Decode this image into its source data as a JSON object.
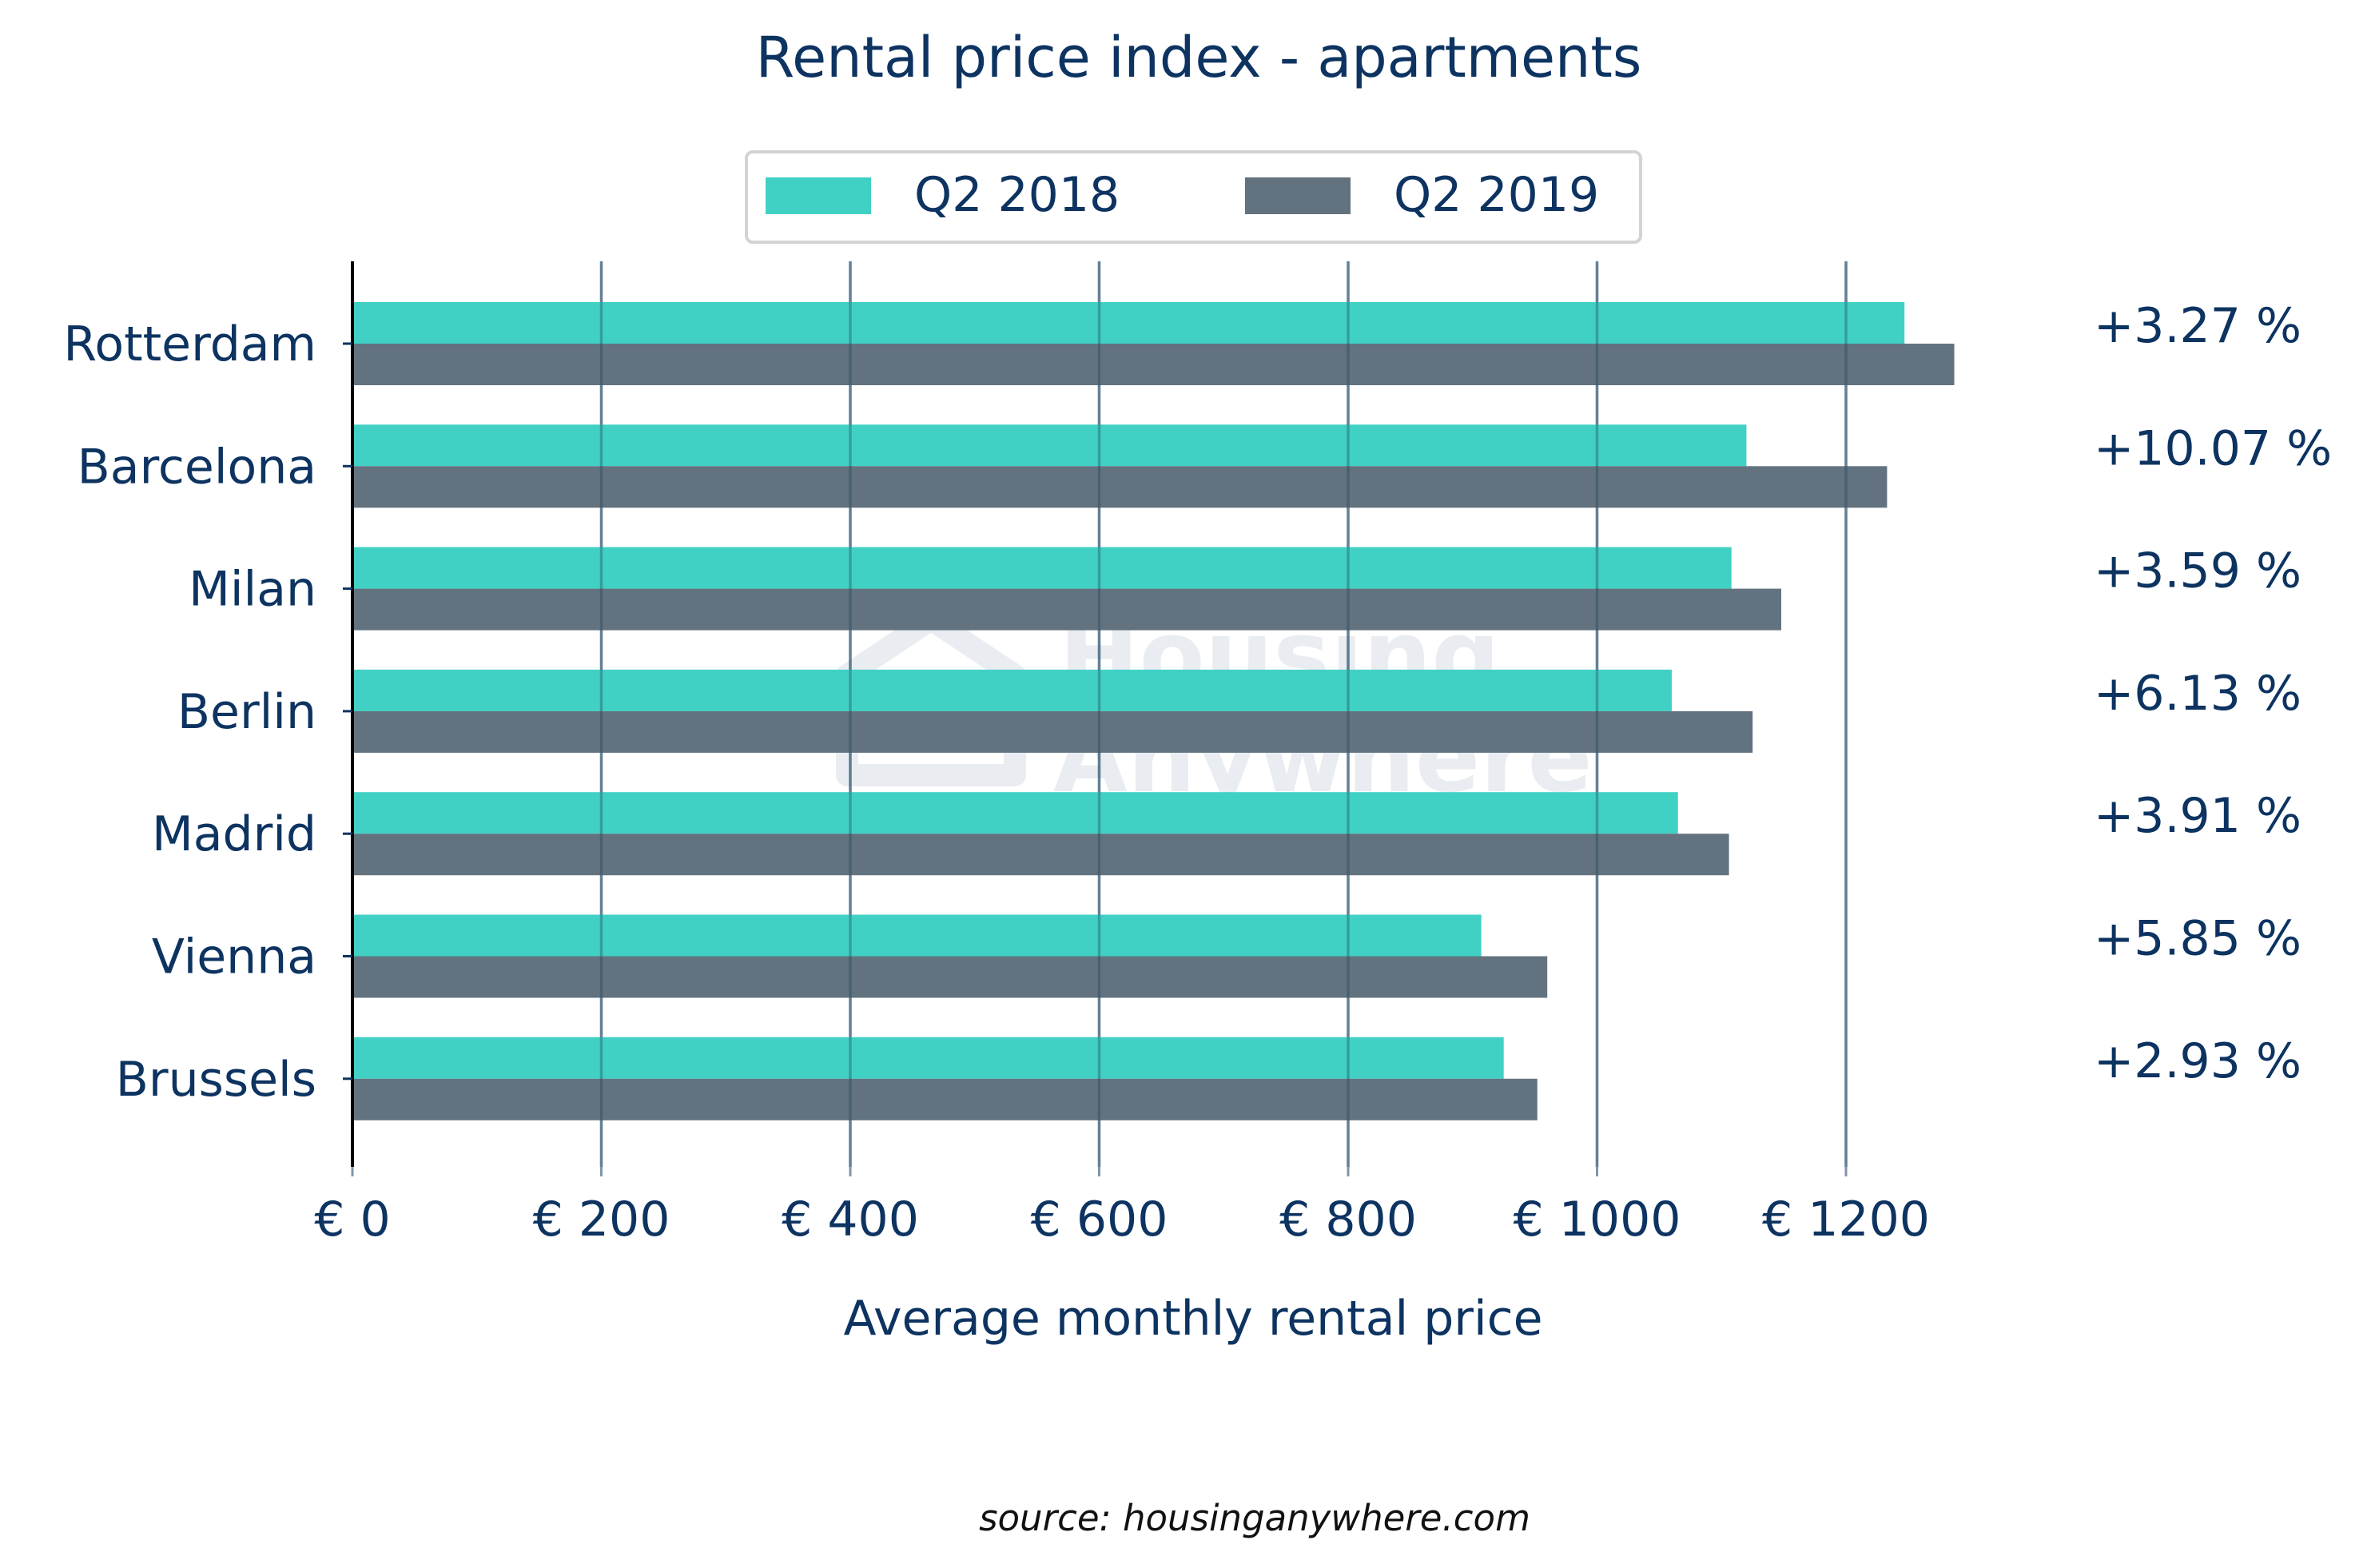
{
  "chart_data": {
    "type": "bar",
    "orientation": "horizontal",
    "title": "Rental price index - apartments",
    "xlabel": "Average monthly rental price",
    "ylabel": "",
    "categories": [
      "Rotterdam",
      "Barcelona",
      "Milan",
      "Berlin",
      "Madrid",
      "Vienna",
      "Brussels"
    ],
    "series": [
      {
        "name": "Q2 2018",
        "color": "#40d1c4",
        "values": [
          1247,
          1120,
          1108,
          1060,
          1065,
          907,
          925
        ]
      },
      {
        "name": "Q2 2019",
        "color": "#62727f",
        "values": [
          1287,
          1233,
          1148,
          1125,
          1106,
          960,
          952
        ]
      }
    ],
    "annotations": [
      "+3.27 %",
      "+10.07 %",
      "+3.59 %",
      "+6.13 %",
      "+3.91 %",
      "+5.85 %",
      "+2.93 %"
    ],
    "xticks": [
      0,
      200,
      400,
      600,
      800,
      1000,
      1200
    ],
    "xtick_labels": [
      "€ 0",
      "€ 200",
      "€ 400",
      "€ 600",
      "€ 800",
      "€ 1000",
      "€ 1200"
    ],
    "xlim": [
      0,
      1300
    ],
    "grid": "vertical",
    "legend_position": "top-center",
    "source": "source: housinganywhere.com",
    "watermark": [
      "Housing",
      "Anywhere"
    ]
  }
}
